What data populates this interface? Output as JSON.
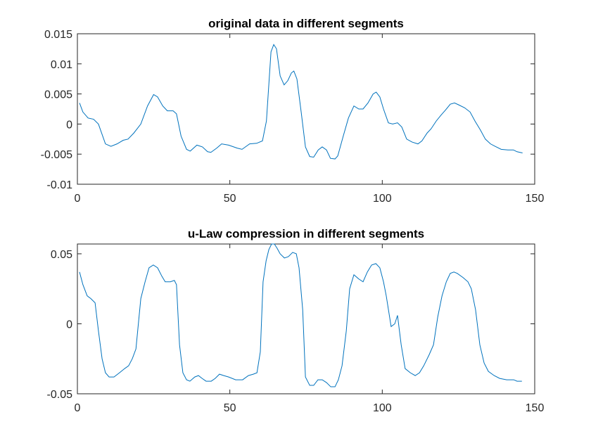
{
  "chart_data": [
    {
      "type": "line",
      "title": "original data in different segments",
      "x": [
        0.7,
        1.8,
        3.5,
        5.3,
        6.9,
        9.2,
        11,
        13,
        15,
        16.6,
        18.5,
        20.8,
        23,
        25,
        26.3,
        28,
        29.5,
        31.4,
        32.5,
        34,
        35.8,
        37,
        39.2,
        41,
        42.7,
        43.8,
        45.7,
        47.3,
        49.6,
        52.4,
        54,
        56.5,
        58.8,
        60.7,
        62,
        63.5,
        64.4,
        65.3,
        66.5,
        67.8,
        69,
        70.2,
        71,
        72,
        73.4,
        74.8,
        76.2,
        77.5,
        79,
        80.3,
        81.7,
        83,
        84.5,
        85.4,
        87.2,
        88.9,
        90.7,
        92.3,
        93.7,
        95.3,
        97,
        98,
        99.2,
        100.4,
        102,
        103.4,
        105,
        106.4,
        108,
        109.8,
        111.7,
        113,
        114.7,
        116,
        117.7,
        119.3,
        120.7,
        122.3,
        123.7,
        125,
        127,
        128.8,
        130.4,
        132.2,
        133.8,
        135.5,
        137,
        139,
        141.2,
        143,
        144.2,
        146
      ],
      "series": [
        {
          "color": "#0072bd",
          "values": [
            0.0035,
            0.002,
            0.001,
            0.0008,
            0,
            -0.0033,
            -0.0037,
            -0.0033,
            -0.0027,
            -0.0025,
            -0.0015,
            0,
            0.003,
            0.0049,
            0.0045,
            0.003,
            0.0022,
            0.0022,
            0.0017,
            -0.002,
            -0.0042,
            -0.0045,
            -0.0035,
            -0.0038,
            -0.0046,
            -0.0047,
            -0.004,
            -0.0033,
            -0.0035,
            -0.004,
            -0.0042,
            -0.0033,
            -0.0032,
            -0.0028,
            0.0005,
            0.012,
            0.0132,
            0.0125,
            0.008,
            0.0065,
            0.0072,
            0.0085,
            0.0088,
            0.0075,
            0.002,
            -0.0038,
            -0.0054,
            -0.0055,
            -0.0043,
            -0.0038,
            -0.0043,
            -0.0057,
            -0.0058,
            -0.0053,
            -0.002,
            0.001,
            0.003,
            0.0025,
            0.0025,
            0.0035,
            0.005,
            0.0053,
            0.0045,
            0.0025,
            0.0002,
            0,
            0.0002,
            -0.0005,
            -0.0025,
            -0.003,
            -0.0033,
            -0.0028,
            -0.0015,
            -0.0008,
            0.0005,
            0.0015,
            0.0023,
            0.0033,
            0.0035,
            0.0032,
            0.0027,
            0.002,
            0.0005,
            -0.001,
            -0.0025,
            -0.0033,
            -0.0037,
            -0.0042,
            -0.0043,
            -0.0043,
            -0.0046,
            -0.0048
          ]
        }
      ],
      "xlim": [
        0,
        150
      ],
      "xticks": [
        0,
        50,
        100,
        150
      ],
      "ylim": [
        -0.01,
        0.015
      ],
      "yticks": [
        -0.01,
        -0.005,
        0,
        0.005,
        0.01,
        0.015
      ]
    },
    {
      "type": "line",
      "title": "u-Law compression in different segments",
      "x": [
        0.7,
        1.8,
        3.2,
        4.4,
        5.8,
        6.9,
        8.1,
        9.2,
        10.4,
        12,
        13.8,
        15.5,
        16.8,
        18,
        19.2,
        20.8,
        22.2,
        23.5,
        24.9,
        26.3,
        27.7,
        28.8,
        30.5,
        31.8,
        32.5,
        33.5,
        34.6,
        35.8,
        36.9,
        38.5,
        39.7,
        40.9,
        42.2,
        43.9,
        45.2,
        46.6,
        48,
        49.6,
        51.9,
        54.2,
        56.1,
        57.7,
        58.9,
        60,
        60.9,
        61.9,
        62.8,
        63.7,
        64.6,
        65.5,
        66.5,
        67.9,
        69.2,
        70.6,
        71.8,
        72.7,
        73.9,
        74.8,
        76.2,
        77.5,
        78.9,
        80.3,
        81.7,
        83.1,
        84.5,
        85.6,
        86.8,
        88.2,
        89.3,
        90.7,
        92.3,
        93.7,
        95.1,
        96.5,
        97.9,
        99.2,
        100.4,
        101.3,
        102.9,
        104.1,
        105,
        106.2,
        107.5,
        109.2,
        110.8,
        112.2,
        113.6,
        115.4,
        116.8,
        118.2,
        119.6,
        121,
        122.3,
        123.5,
        124.6,
        126.5,
        128.1,
        129.2,
        130.6,
        132,
        133.4,
        134.8,
        136.7,
        138.5,
        140.8,
        143.1,
        144.2,
        145.8
      ],
      "series": [
        {
          "color": "#0072bd",
          "values": [
            0.037,
            0.028,
            0.02,
            0.018,
            0.015,
            -0.005,
            -0.025,
            -0.035,
            -0.038,
            -0.038,
            -0.035,
            -0.032,
            -0.03,
            -0.025,
            -0.018,
            0.018,
            0.03,
            0.04,
            0.042,
            0.04,
            0.034,
            0.03,
            0.03,
            0.031,
            0.028,
            -0.015,
            -0.035,
            -0.04,
            -0.041,
            -0.038,
            -0.037,
            -0.039,
            -0.041,
            -0.041,
            -0.039,
            -0.036,
            -0.037,
            -0.038,
            -0.04,
            -0.04,
            -0.037,
            -0.036,
            -0.035,
            -0.02,
            0.03,
            0.045,
            0.053,
            0.057,
            0.057,
            0.054,
            0.05,
            0.047,
            0.048,
            0.051,
            0.05,
            0.04,
            0.01,
            -0.038,
            -0.044,
            -0.044,
            -0.04,
            -0.04,
            -0.042,
            -0.045,
            -0.045,
            -0.04,
            -0.03,
            -0.005,
            0.025,
            0.035,
            0.032,
            0.03,
            0.037,
            0.042,
            0.043,
            0.04,
            0.03,
            0.02,
            -0.002,
            0,
            0.006,
            -0.015,
            -0.032,
            -0.035,
            -0.037,
            -0.035,
            -0.03,
            -0.022,
            -0.015,
            0.005,
            0.02,
            0.03,
            0.036,
            0.037,
            0.036,
            0.033,
            0.03,
            0.025,
            0.01,
            -0.015,
            -0.028,
            -0.034,
            -0.037,
            -0.039,
            -0.04,
            -0.04,
            -0.041,
            -0.041
          ]
        }
      ],
      "xlim": [
        0,
        150
      ],
      "xticks": [
        0,
        50,
        100,
        150
      ],
      "ylim": [
        -0.05,
        0.057
      ],
      "yticks": [
        -0.05,
        0,
        0.05
      ]
    }
  ]
}
